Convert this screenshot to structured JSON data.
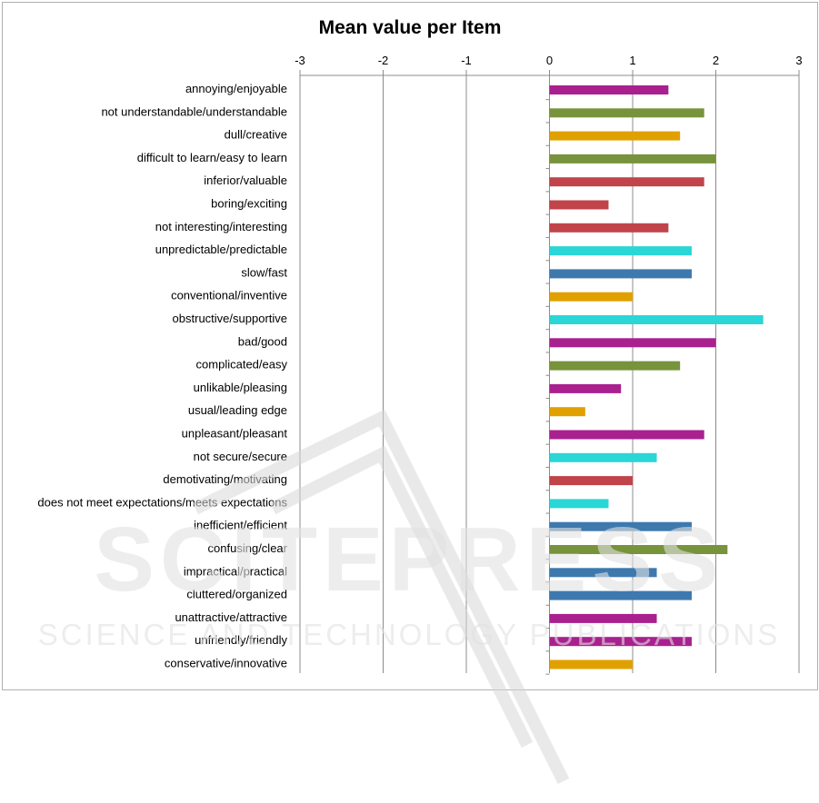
{
  "chart_data": {
    "type": "bar",
    "orientation": "horizontal",
    "title": "Mean value per Item",
    "xlabel": "",
    "ylabel": "",
    "xlim": [
      -3,
      3
    ],
    "x_ticks": [
      "-3",
      "-2",
      "-1",
      "0",
      "1",
      "2",
      "3"
    ],
    "x_axis_position": "top",
    "grid": true,
    "legend": "none",
    "categories": [
      "annoying/enjoyable",
      "not understandable/understandable",
      "dull/creative",
      "difficult to learn/easy to learn",
      "inferior/valuable",
      "boring/exciting",
      "not interesting/interesting",
      "unpredictable/predictable",
      "slow/fast",
      "conventional/inventive",
      "obstructive/supportive",
      "bad/good",
      "complicated/easy",
      "unlikable/pleasing",
      "usual/leading edge",
      "unpleasant/pleasant",
      "not secure/secure",
      "demotivating/motivating",
      "does not meet expectations/meets expectations",
      "inefficient/efficient",
      "confusing/clear",
      "impractical/practical",
      "cluttered/organized",
      "unattractive/attractive",
      "unfriendly/friendly",
      "conservative/innovative"
    ],
    "values": [
      1.43,
      1.86,
      1.57,
      2.0,
      1.86,
      0.71,
      1.43,
      1.71,
      1.71,
      1.0,
      2.57,
      2.0,
      1.57,
      0.86,
      0.43,
      1.86,
      1.29,
      1.0,
      0.71,
      1.71,
      2.14,
      1.29,
      1.71,
      1.29,
      1.71,
      1.0
    ],
    "bar_colors": [
      "#A9208F",
      "#77933C",
      "#E0A100",
      "#77933C",
      "#C0444A",
      "#C0444A",
      "#C0444A",
      "#2BD6D6",
      "#3E79AE",
      "#E0A100",
      "#2BD6D6",
      "#A9208F",
      "#77933C",
      "#A9208F",
      "#E0A100",
      "#A9208F",
      "#2BD6D6",
      "#C0444A",
      "#2BD6D6",
      "#3E79AE",
      "#77933C",
      "#3E79AE",
      "#3E79AE",
      "#A9208F",
      "#A9208F",
      "#E0A100"
    ]
  },
  "watermark": {
    "line1": "SCITEPRESS",
    "line2": "SCIENCE AND TECHNOLOGY PUBLICATIONS"
  }
}
